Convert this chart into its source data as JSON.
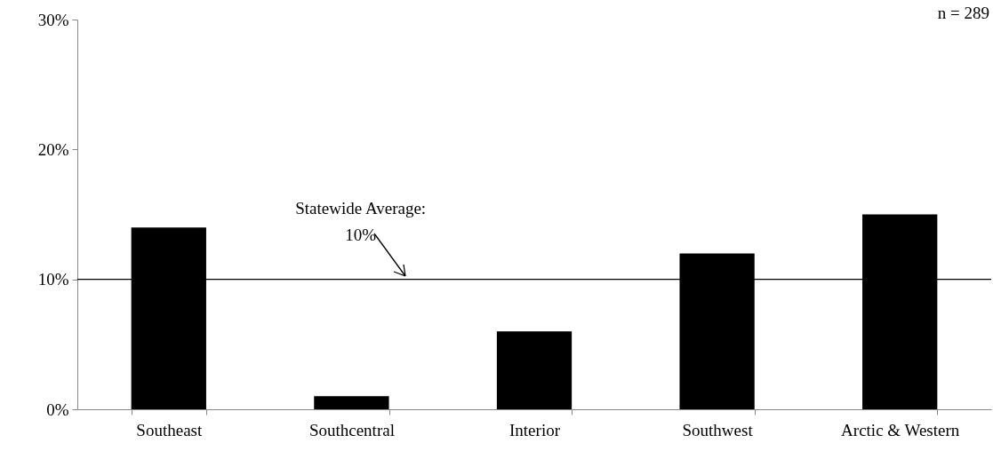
{
  "chart_data": {
    "type": "bar",
    "categories": [
      "Southeast",
      "Southcentral",
      "Interior",
      "Southwest",
      "Arctic & Western"
    ],
    "values": [
      14,
      1,
      6,
      12,
      15
    ],
    "color": "#000000",
    "ylim": [
      0,
      30
    ],
    "yticks": [
      {
        "value": 0,
        "label": "0%"
      },
      {
        "value": 10,
        "label": "10%"
      },
      {
        "value": 20,
        "label": "20%"
      },
      {
        "value": 30,
        "label": "30%"
      }
    ],
    "grid": false,
    "ref_lines": [
      {
        "axis": "y",
        "value": 10,
        "label": "Statewide Average:\n10%",
        "color": "#000000"
      }
    ],
    "annotations": [
      "n = 289"
    ]
  }
}
